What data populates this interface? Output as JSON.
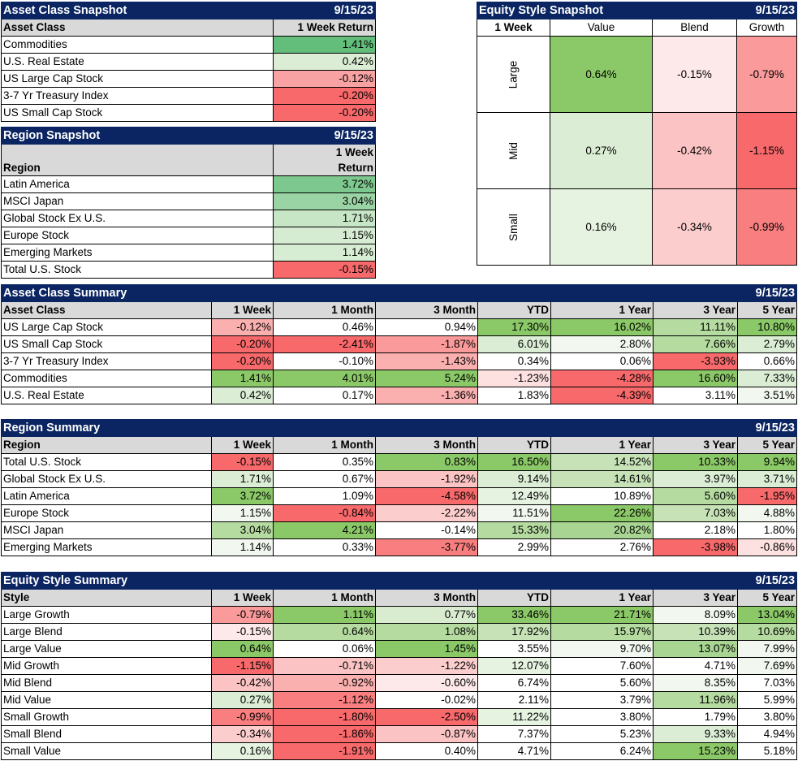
{
  "asset_snapshot": {
    "title": "Asset Class Snapshot",
    "date": "9/15/23",
    "col_label": "Asset Class",
    "col_value": "1 Week Return",
    "rows": [
      {
        "label": "Commodities",
        "value": "1.41%",
        "color": "#63be7b"
      },
      {
        "label": "U.S. Real Estate",
        "value": "0.42%",
        "color": "#dbeed5"
      },
      {
        "label": "US Large Cap Stock",
        "value": "-0.12%",
        "color": "#f9a2a3"
      },
      {
        "label": "3-7 Yr Treasury Index",
        "value": "-0.20%",
        "color": "#f8696b"
      },
      {
        "label": "US Small Cap Stock",
        "value": "-0.20%",
        "color": "#f8696b"
      }
    ]
  },
  "region_snapshot": {
    "title": "Region Snapshot",
    "date": "9/15/23",
    "col_label": "Region",
    "col_value_line1": "1 Week",
    "col_value_line2": "Return",
    "rows": [
      {
        "label": "Latin America",
        "value": "3.72%",
        "color": "#7dc88f"
      },
      {
        "label": "MSCI Japan",
        "value": "3.04%",
        "color": "#9ad3a4"
      },
      {
        "label": "Global Stock Ex U.S.",
        "value": "1.71%",
        "color": "#c7e6c6"
      },
      {
        "label": "Europe Stock",
        "value": "1.15%",
        "color": "#d6ecd2"
      },
      {
        "label": "Emerging Markets",
        "value": "1.14%",
        "color": "#d7edd3"
      },
      {
        "label": "Total U.S. Stock",
        "value": "-0.15%",
        "color": "#f8696b"
      }
    ]
  },
  "style_snapshot": {
    "title": "Equity Style Snapshot",
    "date": "9/15/23",
    "corner": "1 Week",
    "columns": [
      "Value",
      "Blend",
      "Growth"
    ],
    "rows": [
      {
        "label": "Large",
        "cells": [
          {
            "value": "0.64%",
            "color": "#8bc867"
          },
          {
            "value": "-0.15%",
            "color": "#fde9e9"
          },
          {
            "value": "-0.79%",
            "color": "#fa9a9a"
          }
        ]
      },
      {
        "label": "Mid",
        "cells": [
          {
            "value": "0.27%",
            "color": "#dbeed5"
          },
          {
            "value": "-0.42%",
            "color": "#fbc3c3"
          },
          {
            "value": "-1.15%",
            "color": "#f8696b"
          }
        ]
      },
      {
        "label": "Small",
        "cells": [
          {
            "value": "0.16%",
            "color": "#e6f3e1"
          },
          {
            "value": "-0.34%",
            "color": "#fccdcd"
          },
          {
            "value": "-0.99%",
            "color": "#f97e7f"
          }
        ]
      }
    ]
  },
  "asset_summary": {
    "title": "Asset Class Summary",
    "date": "9/15/23",
    "headers": [
      "Asset Class",
      "1 Week",
      "1 Month",
      "3 Month",
      "YTD",
      "1 Year",
      "3 Year",
      "5 Year"
    ],
    "rows": [
      {
        "label": "US Large Cap Stock",
        "values": [
          "-0.12%",
          "0.46%",
          "0.94%",
          "17.30%",
          "16.02%",
          "11.11%",
          "10.80%"
        ],
        "colors": [
          "#fbb0b0",
          "#ffffff",
          "#ffffff",
          "#8bc867",
          "#8bc867",
          "#b5dba0",
          "#8bc867"
        ]
      },
      {
        "label": "US Small Cap Stock",
        "values": [
          "-0.20%",
          "-2.41%",
          "-1.87%",
          "6.01%",
          "2.80%",
          "7.66%",
          "2.79%"
        ],
        "colors": [
          "#f8696b",
          "#f8696b",
          "#fa9a9a",
          "#dbeed5",
          "#f2f8ef",
          "#b5dba0",
          "#dbeed5"
        ]
      },
      {
        "label": "3-7 Yr Treasury Index",
        "values": [
          "-0.20%",
          "-0.10%",
          "-1.43%",
          "0.34%",
          "0.06%",
          "-3.93%",
          "0.66%"
        ],
        "colors": [
          "#f8696b",
          "#ffffff",
          "#fbb0b0",
          "#ffffff",
          "#ffffff",
          "#f8696b",
          "#ffffff"
        ]
      },
      {
        "label": "Commodities",
        "values": [
          "1.41%",
          "4.01%",
          "5.24%",
          "-1.23%",
          "-4.28%",
          "16.60%",
          "7.33%"
        ],
        "colors": [
          "#8bc867",
          "#8bc867",
          "#8bc867",
          "#fde0e0",
          "#f8696b",
          "#8bc867",
          "#dbeed5"
        ]
      },
      {
        "label": "U.S. Real Estate",
        "values": [
          "0.42%",
          "0.17%",
          "-1.36%",
          "1.83%",
          "-4.39%",
          "3.11%",
          "3.51%"
        ],
        "colors": [
          "#dbeed5",
          "#ffffff",
          "#fbb0b0",
          "#ffffff",
          "#f8696b",
          "#ffffff",
          "#f2f8ef"
        ]
      }
    ]
  },
  "region_summary": {
    "title": "Region Summary",
    "date": "9/15/23",
    "headers": [
      "Region",
      "1 Week",
      "1 Month",
      "3 Month",
      "YTD",
      "1 Year",
      "3 Year",
      "5 Year"
    ],
    "rows": [
      {
        "label": "Total U.S. Stock",
        "values": [
          "-0.15%",
          "0.35%",
          "0.83%",
          "16.50%",
          "14.52%",
          "10.33%",
          "9.94%"
        ],
        "colors": [
          "#f8696b",
          "#ffffff",
          "#8bc867",
          "#8bc867",
          "#c6e2b6",
          "#8bc867",
          "#8bc867"
        ]
      },
      {
        "label": "Global Stock Ex U.S.",
        "values": [
          "1.71%",
          "0.67%",
          "-1.92%",
          "9.14%",
          "14.61%",
          "3.97%",
          "3.71%"
        ],
        "colors": [
          "#dbeed5",
          "#ffffff",
          "#fbc3c3",
          "#dbeed5",
          "#c6e2b6",
          "#dbeed5",
          "#dbeed5"
        ]
      },
      {
        "label": "Latin America",
        "values": [
          "3.72%",
          "1.09%",
          "-4.58%",
          "12.49%",
          "10.89%",
          "5.60%",
          "-1.95%"
        ],
        "colors": [
          "#8bc867",
          "#ffffff",
          "#f8696b",
          "#e6f3e1",
          "#ffffff",
          "#b5dba0",
          "#f8696b"
        ]
      },
      {
        "label": "Europe Stock",
        "values": [
          "1.15%",
          "-0.84%",
          "-2.22%",
          "11.51%",
          "22.26%",
          "7.03%",
          "4.88%"
        ],
        "colors": [
          "#f2f8ef",
          "#f8696b",
          "#fccdcd",
          "#f2f8ef",
          "#8bc867",
          "#c6e2b6",
          "#f2f8ef"
        ]
      },
      {
        "label": "MSCI Japan",
        "values": [
          "3.04%",
          "4.21%",
          "-0.14%",
          "15.33%",
          "20.82%",
          "2.18%",
          "1.80%"
        ],
        "colors": [
          "#b5dba0",
          "#8bc867",
          "#ffffff",
          "#b5dba0",
          "#a8d591",
          "#ffffff",
          "#ffffff"
        ]
      },
      {
        "label": "Emerging Markets",
        "values": [
          "1.14%",
          "0.33%",
          "-3.77%",
          "2.99%",
          "2.76%",
          "-3.98%",
          "-0.86%"
        ],
        "colors": [
          "#f2f8ef",
          "#ffffff",
          "#f97e7f",
          "#ffffff",
          "#ffffff",
          "#f8696b",
          "#fde0e0"
        ]
      }
    ]
  },
  "style_summary": {
    "title": "Equity Style Summary",
    "date": "9/15/23",
    "headers": [
      "Style",
      "1 Week",
      "1 Month",
      "3 Month",
      "YTD",
      "1 Year",
      "3 Year",
      "5 Year"
    ],
    "rows": [
      {
        "label": "Large Growth",
        "values": [
          "-0.79%",
          "1.11%",
          "0.77%",
          "33.46%",
          "21.71%",
          "8.09%",
          "13.04%"
        ],
        "colors": [
          "#fa9a9a",
          "#8bc867",
          "#d9ecd0",
          "#8bc867",
          "#8bc867",
          "#f2f8ef",
          "#8bc867"
        ]
      },
      {
        "label": "Large Blend",
        "values": [
          "-0.15%",
          "0.64%",
          "1.08%",
          "17.92%",
          "15.97%",
          "10.39%",
          "10.69%"
        ],
        "colors": [
          "#fde9e9",
          "#b5dba0",
          "#b5dba0",
          "#c6e2b6",
          "#b5dba0",
          "#c6e2b6",
          "#b5dba0"
        ]
      },
      {
        "label": "Large Value",
        "values": [
          "0.64%",
          "0.06%",
          "1.45%",
          "3.55%",
          "9.70%",
          "13.07%",
          "7.99%"
        ],
        "colors": [
          "#8bc867",
          "#ffffff",
          "#8bc867",
          "#ffffff",
          "#f2f8ef",
          "#a8d591",
          "#f2f8ef"
        ]
      },
      {
        "label": "Mid Growth",
        "values": [
          "-1.15%",
          "-0.71%",
          "-1.22%",
          "12.07%",
          "7.60%",
          "4.71%",
          "7.69%"
        ],
        "colors": [
          "#f8696b",
          "#fbc3c3",
          "#fccdcd",
          "#e6f3e1",
          "#ffffff",
          "#ffffff",
          "#f2f8ef"
        ]
      },
      {
        "label": "Mid Blend",
        "values": [
          "-0.42%",
          "-0.92%",
          "-0.60%",
          "6.74%",
          "5.60%",
          "8.35%",
          "7.03%"
        ],
        "colors": [
          "#fbc3c3",
          "#fbb0b0",
          "#fde9e9",
          "#ffffff",
          "#ffffff",
          "#f2f8ef",
          "#ffffff"
        ]
      },
      {
        "label": "Mid Value",
        "values": [
          "0.27%",
          "-1.12%",
          "-0.02%",
          "2.11%",
          "3.79%",
          "11.96%",
          "5.99%"
        ],
        "colors": [
          "#dbeed5",
          "#f97e7f",
          "#ffffff",
          "#ffffff",
          "#ffffff",
          "#b5dba0",
          "#ffffff"
        ]
      },
      {
        "label": "Small Growth",
        "values": [
          "-0.99%",
          "-1.80%",
          "-2.50%",
          "11.22%",
          "3.80%",
          "1.79%",
          "3.80%"
        ],
        "colors": [
          "#f97e7f",
          "#f8696b",
          "#f8696b",
          "#e6f3e1",
          "#ffffff",
          "#ffffff",
          "#ffffff"
        ]
      },
      {
        "label": "Small Blend",
        "values": [
          "-0.34%",
          "-1.86%",
          "-0.87%",
          "7.37%",
          "5.23%",
          "9.33%",
          "4.94%"
        ],
        "colors": [
          "#fccdcd",
          "#f8696b",
          "#fbc3c3",
          "#ffffff",
          "#ffffff",
          "#dbeed5",
          "#ffffff"
        ]
      },
      {
        "label": "Small Value",
        "values": [
          "0.16%",
          "-1.91%",
          "0.40%",
          "4.71%",
          "6.24%",
          "15.23%",
          "5.18%"
        ],
        "colors": [
          "#e6f3e1",
          "#f8696b",
          "#ffffff",
          "#ffffff",
          "#ffffff",
          "#8bc867",
          "#ffffff"
        ]
      }
    ]
  }
}
